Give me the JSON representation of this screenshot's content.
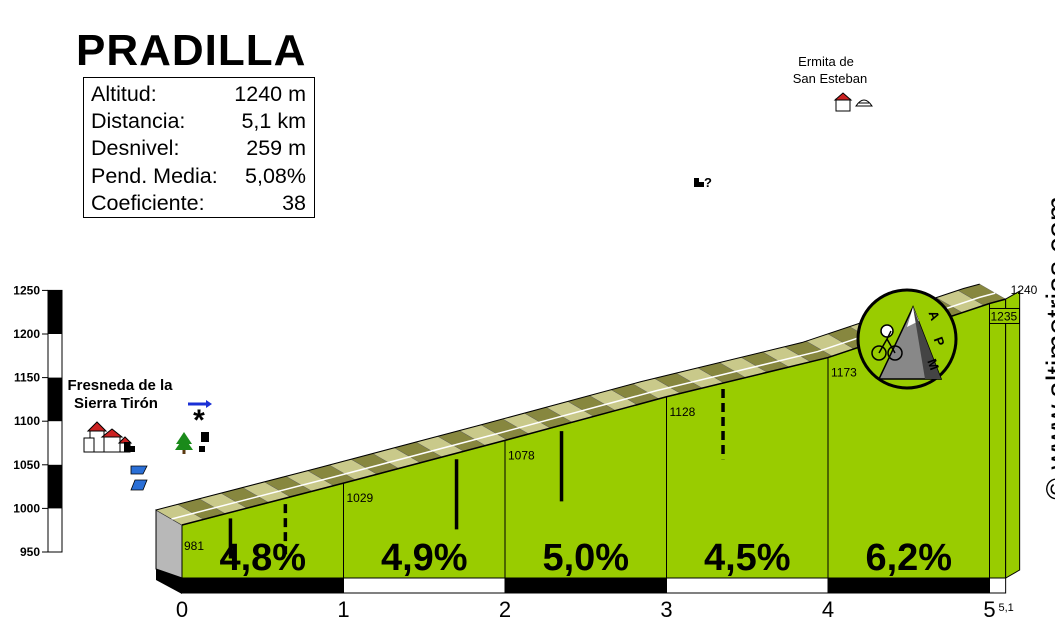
{
  "chart_data": {
    "type": "area",
    "title": "PRADILLA",
    "stats": [
      {
        "label": "Altitud:",
        "value": "1240 m"
      },
      {
        "label": "Distancia:",
        "value": "5,1 km"
      },
      {
        "label": "Desnivel:",
        "value": "259 m"
      },
      {
        "label": "Pend. Media:",
        "value": "5,08%"
      },
      {
        "label": "Coeficiente:",
        "value": "38"
      }
    ],
    "x_ticks": [
      "0",
      "1",
      "2",
      "3",
      "4",
      "5"
    ],
    "x_end_label": "5,1",
    "ylim": [
      950,
      1250
    ],
    "y_ticks": [
      "950",
      "1000",
      "1050",
      "1100",
      "1150",
      "1200",
      "1250"
    ],
    "profile": {
      "distance_km": [
        0,
        1,
        2,
        3,
        4,
        5,
        5.1
      ],
      "elevation_m": [
        981,
        1029,
        1078,
        1128,
        1173,
        1235,
        1240
      ]
    },
    "point_labels": [
      {
        "km": 0,
        "text": "981"
      },
      {
        "km": 1,
        "text": "1029"
      },
      {
        "km": 2,
        "text": "1078"
      },
      {
        "km": 3,
        "text": "1128"
      },
      {
        "km": 4,
        "text": "1173"
      },
      {
        "km": 5,
        "text": "1235"
      },
      {
        "km": 5.1,
        "text": "1240"
      }
    ],
    "segments": [
      {
        "from_km": 0,
        "to_km": 1,
        "gradient": "4,8%"
      },
      {
        "from_km": 1,
        "to_km": 2,
        "gradient": "4,9%"
      },
      {
        "from_km": 2,
        "to_km": 3,
        "gradient": "5,0%"
      },
      {
        "from_km": 3,
        "to_km": 4,
        "gradient": "4,5%"
      },
      {
        "from_km": 4,
        "to_km": 5,
        "gradient": "6,2%"
      }
    ],
    "markers": [
      {
        "km": 0.3,
        "depth_m": 40,
        "style": "solid"
      },
      {
        "km": 0.64,
        "depth_m": 50,
        "style": "dashed"
      },
      {
        "km": 1.7,
        "depth_m": 70,
        "style": "solid"
      },
      {
        "km": 2.35,
        "depth_m": 70,
        "style": "solid"
      },
      {
        "km": 3.35,
        "depth_m": 70,
        "style": "dashed"
      }
    ],
    "places": [
      {
        "name": "Fresneda de la",
        "name2": "Sierra Tirón"
      },
      {
        "name": "Ermita de",
        "name2": "San Esteban"
      }
    ],
    "annotations": {
      "question": "?",
      "asterisk": "*"
    },
    "watermark": "© www.altimetrias.com",
    "logo_text": "APM",
    "colors": {
      "fill": "#99cc00",
      "band_light": "#c9c98a",
      "band_dark": "#87873f",
      "base_side": "#b8b8b8",
      "scale_black": "#000000"
    }
  }
}
